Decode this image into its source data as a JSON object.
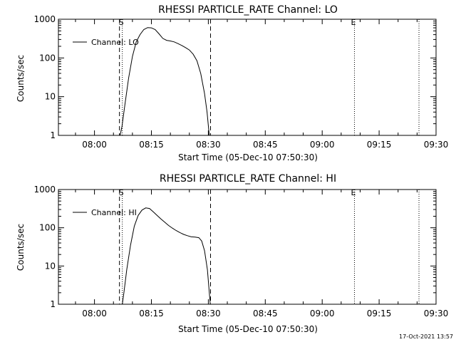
{
  "chart_data": [
    {
      "type": "line",
      "title": "RHESSI PARTICLE_RATE Channel: LO",
      "xlabel": "Start Time (05-Dec-10 07:50:30)",
      "ylabel": "Counts/sec",
      "yscale": "log",
      "ylim": [
        1,
        1000
      ],
      "xlim": [
        "07:50:30",
        "09:30:00"
      ],
      "x_ticks": [
        "08:00",
        "08:15",
        "08:30",
        "08:45",
        "09:00",
        "09:15",
        "09:30"
      ],
      "y_ticks": [
        "1",
        "10",
        "100",
        "1000"
      ],
      "legend": {
        "placement": "top-left"
      },
      "series": [
        {
          "name": "Channel: LO",
          "x": [
            "08:06:45",
            "08:07:15",
            "08:08:00",
            "08:09:00",
            "08:10:00",
            "08:11:00",
            "08:12:00",
            "08:13:00",
            "08:14:00",
            "08:15:00",
            "08:16:00",
            "08:17:00",
            "08:18:00",
            "08:19:00",
            "08:20:00",
            "08:21:00",
            "08:22:00",
            "08:23:00",
            "08:24:00",
            "08:25:00",
            "08:26:00",
            "08:27:00",
            "08:28:00",
            "08:29:00",
            "08:29:40",
            "08:30:15"
          ],
          "y": [
            1,
            1.7,
            6,
            30,
            110,
            260,
            400,
            540,
            610,
            600,
            540,
            420,
            320,
            285,
            275,
            260,
            235,
            210,
            185,
            160,
            125,
            85,
            40,
            12,
            4,
            1
          ]
        }
      ],
      "vlines": [
        {
          "x": "08:06:35",
          "style": "dashed"
        },
        {
          "x": "08:07:20",
          "style": "dotted"
        },
        {
          "x": "08:30:35",
          "style": "dashed"
        },
        {
          "x": "09:08:30",
          "style": "dotted"
        },
        {
          "x": "09:25:30",
          "style": "dotted"
        }
      ],
      "markers": [
        {
          "x": "08:07:20",
          "label": "S"
        },
        {
          "x": "09:08:30",
          "label": "E"
        }
      ]
    },
    {
      "type": "line",
      "title": "RHESSI PARTICLE_RATE Channel: HI",
      "xlabel": "Start Time (05-Dec-10 07:50:30)",
      "ylabel": "Counts/sec",
      "yscale": "log",
      "ylim": [
        1,
        1000
      ],
      "xlim": [
        "07:50:30",
        "09:30:00"
      ],
      "x_ticks": [
        "08:00",
        "08:15",
        "08:30",
        "08:45",
        "09:00",
        "09:15",
        "09:30"
      ],
      "y_ticks": [
        "1",
        "10",
        "100",
        "1000"
      ],
      "legend": {
        "placement": "top-left"
      },
      "series": [
        {
          "name": "Channel: HI",
          "x": [
            "08:07:20",
            "08:07:45",
            "08:08:30",
            "08:09:30",
            "08:10:30",
            "08:11:30",
            "08:12:30",
            "08:13:30",
            "08:14:30",
            "08:15:30",
            "08:16:30",
            "08:17:30",
            "08:18:30",
            "08:19:30",
            "08:20:30",
            "08:21:30",
            "08:22:30",
            "08:23:30",
            "08:24:30",
            "08:25:30",
            "08:26:30",
            "08:27:30",
            "08:28:15",
            "08:29:00",
            "08:29:45",
            "08:30:30"
          ],
          "y": [
            1,
            2,
            8,
            35,
            110,
            210,
            290,
            330,
            320,
            260,
            210,
            170,
            140,
            115,
            98,
            85,
            75,
            67,
            62,
            58,
            57,
            55,
            45,
            25,
            8,
            1
          ]
        }
      ],
      "vlines": [
        {
          "x": "08:06:35",
          "style": "dashed"
        },
        {
          "x": "08:07:20",
          "style": "dotted"
        },
        {
          "x": "08:30:35",
          "style": "dashed"
        },
        {
          "x": "09:08:30",
          "style": "dotted"
        },
        {
          "x": "09:25:30",
          "style": "dotted"
        }
      ],
      "markers": [
        {
          "x": "08:07:20",
          "label": "S"
        },
        {
          "x": "09:08:30",
          "label": "E"
        }
      ]
    }
  ],
  "footer": {
    "timestamp": "17-Oct-2021 13:57"
  }
}
